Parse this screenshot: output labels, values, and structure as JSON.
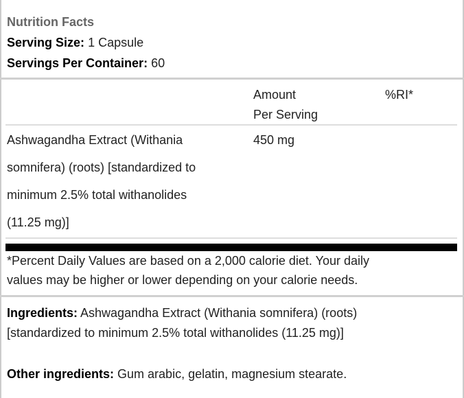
{
  "header": {
    "title": "Nutrition Facts",
    "serving_size_label": "Serving Size:",
    "serving_size_value": "1 Capsule",
    "servings_label": "Servings Per Container:",
    "servings_value": "60"
  },
  "table": {
    "columns": [
      "",
      "Amount",
      "Per Serving",
      "%RI*"
    ],
    "rows": [
      {
        "name_lines": [
          "Ashwagandha Extract (Withania",
          "somnifera) (roots) [standardized to",
          "minimum 2.5% total withanolides",
          "(11.25 mg)]"
        ],
        "amount": "450 mg",
        "ri": ""
      }
    ]
  },
  "footnote": [
    "*Percent Daily Values are based on a 2,000 calorie diet. Your daily",
    "values may be higher or lower depending on your calorie needs."
  ],
  "ingredients": {
    "label": "Ingredients:",
    "text_lines": [
      "Ashwagandha Extract (Withania somnifera) (roots)",
      "[standardized to minimum 2.5% total withanolides (11.25 mg)]"
    ],
    "other_label": "Other ingredients:",
    "other_text": "Gum arabic, gelatin, magnesium stearate."
  }
}
